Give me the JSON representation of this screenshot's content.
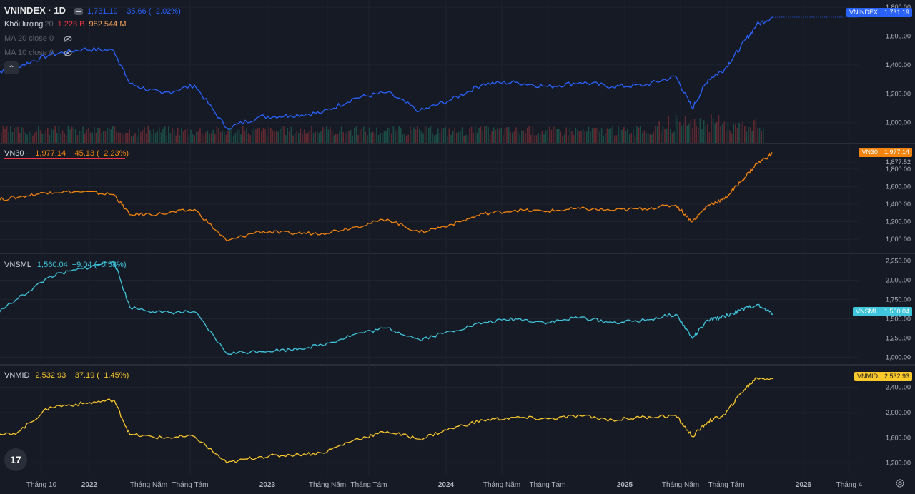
{
  "header": {
    "symbol": "VNINDEX · 1D",
    "price": "1,731.19",
    "change": "−35.66 (−2.02%)",
    "volume_label": "Khối lượng",
    "volume_len": "20",
    "volume_val1": "1.223 B",
    "volume_val2": "982.544 M",
    "ma20": "MA 20 close 0",
    "ma10": "MA 10 close 0",
    "collapse_icon": "chevron-up-icon"
  },
  "panes": [
    {
      "key": "vnindex",
      "label": "VNINDEX",
      "last": "1,731.19",
      "color": "#2962ff",
      "yticks": [
        "1,800.00",
        "1,600.00",
        "1,400.00",
        "1,200.00",
        "1,000.00"
      ]
    },
    {
      "key": "vn30",
      "label": "VN30",
      "last": "1,977.14",
      "change": "−45.13 (−2.23%)",
      "color": "#f5840c",
      "yticks": [
        "1,877.52",
        "1,800.00",
        "1,600.00",
        "1,400.00",
        "1,200.00",
        "1,000.00"
      ]
    },
    {
      "key": "vnsml",
      "label": "VNSML",
      "last": "1,560.04",
      "change": "−9.04 (−0.58%)",
      "color": "#3fc6dd",
      "yticks": [
        "2,250.00",
        "2,000.00",
        "1,750.00",
        "1,500.00",
        "1,250.00",
        "1,000.00"
      ]
    },
    {
      "key": "vnmid",
      "label": "VNMID",
      "last": "2,532.93",
      "change": "−37.19 (−1.45%)",
      "color": "#fcc92b",
      "yticks": [
        "2,400.00",
        "2,000.00",
        "1,600.00",
        "1,200.00"
      ]
    }
  ],
  "xaxis": {
    "ticks": [
      "Tháng 10",
      "2022",
      "Tháng Năm",
      "Tháng Tám",
      "2023",
      "Tháng Năm",
      "Tháng Tám",
      "2024",
      "Tháng Năm",
      "Tháng Tám",
      "2025",
      "Tháng Năm",
      "Tháng Tám",
      "2026",
      "Tháng 4"
    ],
    "bold": [
      false,
      true,
      false,
      false,
      true,
      false,
      false,
      true,
      false,
      false,
      true,
      false,
      false,
      true,
      false
    ]
  },
  "icons": {
    "logo": "tradingview-logo",
    "settings": "gear-icon",
    "hidden": "eye-off-icon"
  },
  "chart_data": [
    {
      "type": "line",
      "name": "VNINDEX",
      "ylim": [
        880,
        1830
      ],
      "x": [
        "2021-08",
        "2021-10",
        "2021-12",
        "2022-02",
        "2022-04",
        "2022-05",
        "2022-07",
        "2022-09",
        "2022-11",
        "2023-01",
        "2023-03",
        "2023-05",
        "2023-07",
        "2023-09",
        "2023-11",
        "2024-01",
        "2024-03",
        "2024-05",
        "2024-07",
        "2024-09",
        "2024-11",
        "2025-01",
        "2025-03",
        "2025-04",
        "2025-05",
        "2025-06",
        "2025-07",
        "2025-08",
        "2025-09"
      ],
      "values": [
        1330,
        1390,
        1470,
        1510,
        1500,
        1270,
        1200,
        1260,
        960,
        1040,
        1050,
        1070,
        1170,
        1210,
        1080,
        1160,
        1270,
        1280,
        1250,
        1280,
        1250,
        1260,
        1320,
        1100,
        1300,
        1370,
        1520,
        1680,
        1731.19
      ]
    },
    {
      "type": "line",
      "name": "VN30",
      "ylim": [
        880,
        2050
      ],
      "x": [
        "2021-08",
        "2021-10",
        "2021-12",
        "2022-02",
        "2022-04",
        "2022-05",
        "2022-07",
        "2022-09",
        "2022-11",
        "2023-01",
        "2023-03",
        "2023-05",
        "2023-07",
        "2023-09",
        "2023-11",
        "2024-01",
        "2024-03",
        "2024-05",
        "2024-07",
        "2024-09",
        "2024-11",
        "2025-01",
        "2025-03",
        "2025-04",
        "2025-05",
        "2025-06",
        "2025-07",
        "2025-08",
        "2025-09"
      ],
      "values": [
        1430,
        1480,
        1540,
        1540,
        1510,
        1280,
        1290,
        1340,
        980,
        1090,
        1070,
        1070,
        1140,
        1230,
        1080,
        1170,
        1290,
        1330,
        1320,
        1350,
        1330,
        1350,
        1390,
        1200,
        1390,
        1460,
        1650,
        1860,
        1977.14
      ]
    },
    {
      "type": "line",
      "name": "VNSML",
      "ylim": [
        950,
        2300
      ],
      "x": [
        "2021-08",
        "2021-10",
        "2021-12",
        "2022-02",
        "2022-04",
        "2022-05",
        "2022-07",
        "2022-09",
        "2022-11",
        "2023-01",
        "2023-03",
        "2023-05",
        "2023-07",
        "2023-09",
        "2023-11",
        "2024-01",
        "2024-03",
        "2024-05",
        "2024-07",
        "2024-09",
        "2024-11",
        "2025-01",
        "2025-03",
        "2025-04",
        "2025-05",
        "2025-06",
        "2025-07",
        "2025-08",
        "2025-09"
      ],
      "values": [
        1480,
        1760,
        2050,
        2150,
        2250,
        1650,
        1580,
        1590,
        1050,
        1080,
        1100,
        1160,
        1300,
        1380,
        1230,
        1340,
        1450,
        1500,
        1450,
        1520,
        1450,
        1480,
        1560,
        1250,
        1480,
        1530,
        1610,
        1680,
        1560.04
      ]
    },
    {
      "type": "line",
      "name": "VNMID",
      "ylim": [
        1050,
        2700
      ],
      "x": [
        "2021-08",
        "2021-10",
        "2021-12",
        "2022-02",
        "2022-04",
        "2022-05",
        "2022-07",
        "2022-09",
        "2022-11",
        "2023-01",
        "2023-03",
        "2023-05",
        "2023-07",
        "2023-09",
        "2023-11",
        "2024-01",
        "2024-03",
        "2024-05",
        "2024-07",
        "2024-09",
        "2024-11",
        "2025-01",
        "2025-03",
        "2025-04",
        "2025-05",
        "2025-06",
        "2025-07",
        "2025-08",
        "2025-09"
      ],
      "values": [
        1590,
        1690,
        2090,
        2140,
        2200,
        1650,
        1600,
        1620,
        1200,
        1300,
        1330,
        1360,
        1570,
        1700,
        1580,
        1750,
        1880,
        1920,
        1900,
        1950,
        1880,
        1930,
        1950,
        1620,
        1860,
        1960,
        2300,
        2550,
        2532.93
      ]
    }
  ]
}
